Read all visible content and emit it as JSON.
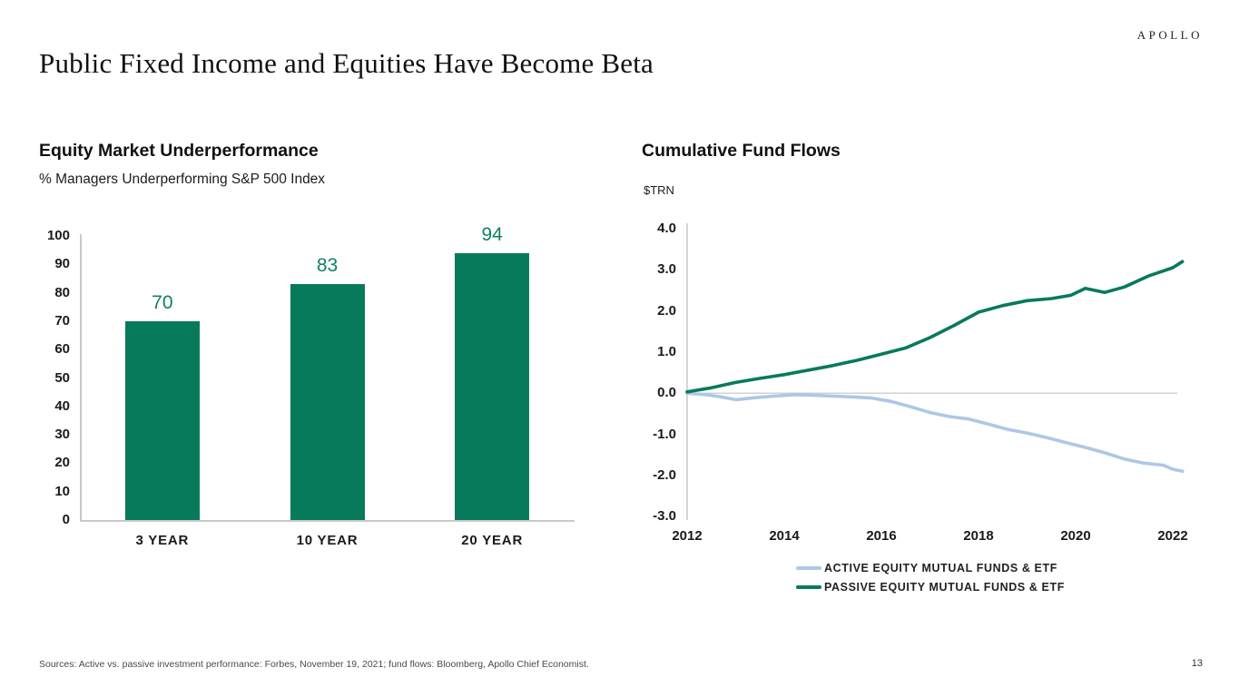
{
  "brand": "APOLLO",
  "title": "Public Fixed Income and Equities Have Become Beta",
  "left_chart": {
    "title": "Equity Market Underperformance",
    "subtitle": "% Managers Underperforming S&P 500 Index"
  },
  "right_chart": {
    "title": "Cumulative Fund Flows",
    "unit": "$TRN"
  },
  "footer": {
    "sources": "Sources: Active vs. passive investment performance: Forbes, November 19, 2021; fund flows: Bloomberg, Apollo Chief Economist.",
    "page_number": "13"
  },
  "colors": {
    "green": "#087a5c",
    "green_label": "#108062",
    "blue": "#adc8e4",
    "axis_gray": "#c9c9c9",
    "zero_line_gray": "#c4c4c4"
  },
  "chart_data": [
    {
      "type": "bar",
      "title": "Equity Market Underperformance",
      "xlabel": "",
      "ylabel": "% Managers Underperforming S&P 500 Index",
      "categories": [
        "3 YEAR",
        "10 YEAR",
        "20 YEAR"
      ],
      "values": [
        70,
        83,
        94
      ],
      "ylim": [
        0,
        100
      ],
      "ytick_step": 10,
      "grid": false,
      "bar_color": "#087a5c",
      "value_label_color": "#108062"
    },
    {
      "type": "line",
      "title": "Cumulative Fund Flows",
      "ylabel": "$TRN",
      "xlabel": "",
      "xlim": [
        2012,
        2022.25
      ],
      "ylim": [
        -3.0,
        4.0
      ],
      "yticks": [
        4.0,
        3.0,
        2.0,
        1.0,
        0.0,
        -1.0,
        -2.0,
        -3.0
      ],
      "ytick_labels": [
        "4.0",
        "3.0",
        "2.0",
        "1.0",
        "0.0",
        "-1.0",
        "-2.0",
        "-3.0"
      ],
      "xticks": [
        2012,
        2014,
        2016,
        2018,
        2020,
        2022
      ],
      "grid": false,
      "zero_line": true,
      "legend_position": "bottom",
      "series": [
        {
          "name": "ACTIVE EQUITY MUTUAL FUNDS & ETF",
          "color": "#adc8e4",
          "x": [
            2012,
            2012.4,
            2012.7,
            2013.0,
            2013.4,
            2013.8,
            2014.2,
            2014.6,
            2015.0,
            2015.4,
            2015.8,
            2016.2,
            2016.6,
            2017.0,
            2017.4,
            2017.8,
            2018.2,
            2018.6,
            2019.0,
            2019.4,
            2019.8,
            2020.2,
            2020.6,
            2021.0,
            2021.4,
            2021.8,
            2022.0,
            2022.2
          ],
          "y": [
            0.0,
            -0.04,
            -0.09,
            -0.16,
            -0.11,
            -0.07,
            -0.04,
            -0.05,
            -0.07,
            -0.09,
            -0.12,
            -0.2,
            -0.33,
            -0.47,
            -0.57,
            -0.63,
            -0.75,
            -0.88,
            -0.97,
            -1.08,
            -1.2,
            -1.32,
            -1.45,
            -1.6,
            -1.7,
            -1.75,
            -1.85,
            -1.9
          ]
        },
        {
          "name": "PASSIVE EQUITY MUTUAL FUNDS & ETF",
          "color": "#087a5c",
          "x": [
            2012,
            2012.5,
            2013.0,
            2013.5,
            2014.0,
            2014.5,
            2015.0,
            2015.5,
            2016.0,
            2016.5,
            2017.0,
            2017.5,
            2018.0,
            2018.5,
            2019.0,
            2019.5,
            2019.9,
            2020.2,
            2020.6,
            2021.0,
            2021.5,
            2022.0,
            2022.2
          ],
          "y": [
            0.03,
            0.13,
            0.26,
            0.36,
            0.45,
            0.56,
            0.67,
            0.8,
            0.95,
            1.1,
            1.35,
            1.65,
            1.97,
            2.13,
            2.25,
            2.3,
            2.38,
            2.55,
            2.45,
            2.58,
            2.85,
            3.05,
            3.2
          ]
        }
      ]
    }
  ]
}
